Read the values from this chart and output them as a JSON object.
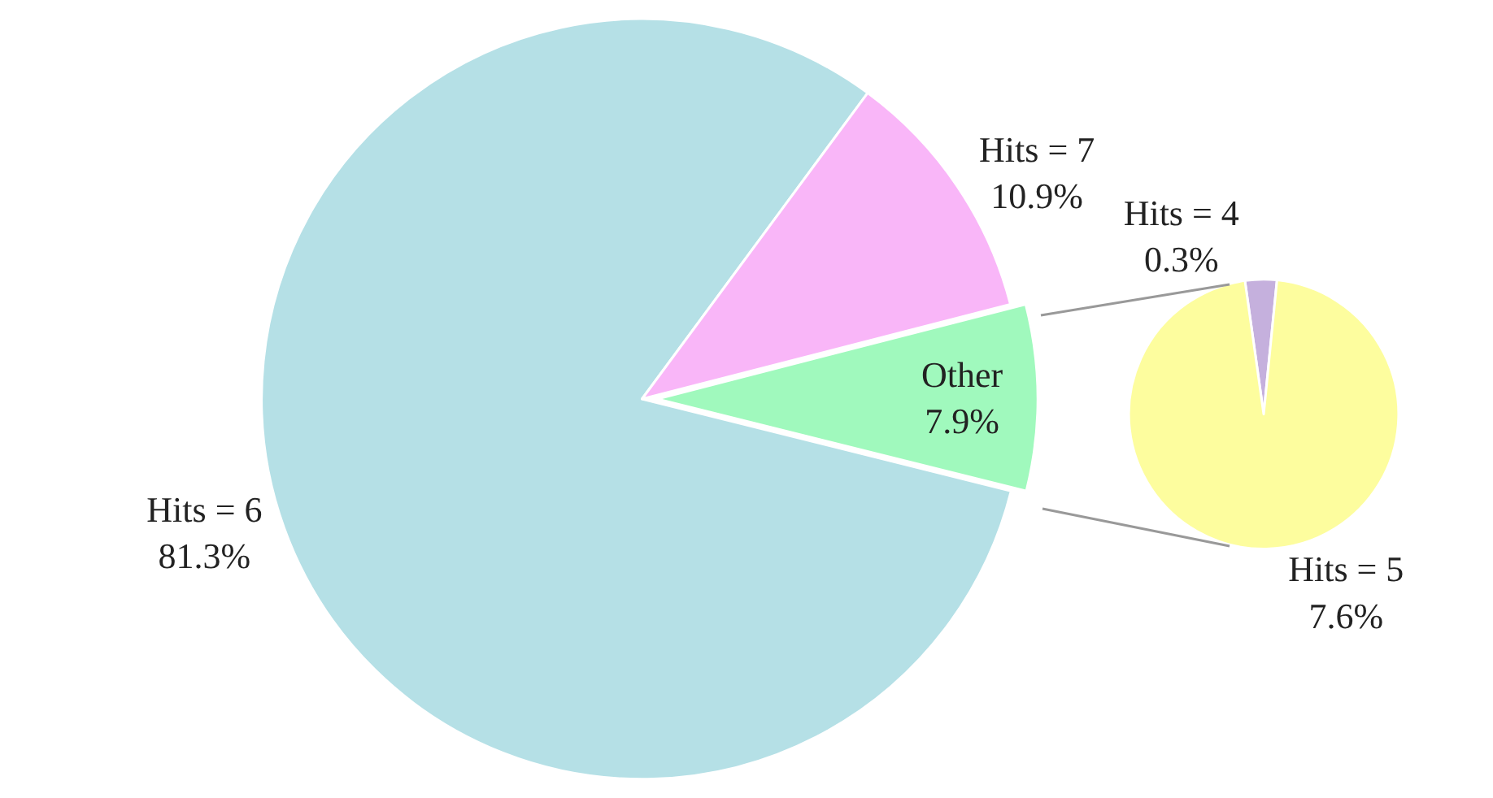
{
  "chart_data": [
    {
      "type": "pie",
      "categories": [
        "Hits = 6",
        "Hits = 7",
        "Other"
      ],
      "values": [
        81.3,
        10.9,
        7.9
      ],
      "value_labels": [
        "81.3%",
        "10.9%",
        "7.9%"
      ],
      "colors": [
        "#b5e0e6",
        "#f9b6f8",
        "#a0f9bd"
      ]
    },
    {
      "type": "pie",
      "categories": [
        "Hits = 4",
        "Hits = 5"
      ],
      "values": [
        0.3,
        7.6
      ],
      "value_labels": [
        "0.3%",
        "7.6%"
      ],
      "colors": [
        "#c5b0dd",
        "#fdfd9e"
      ]
    }
  ]
}
